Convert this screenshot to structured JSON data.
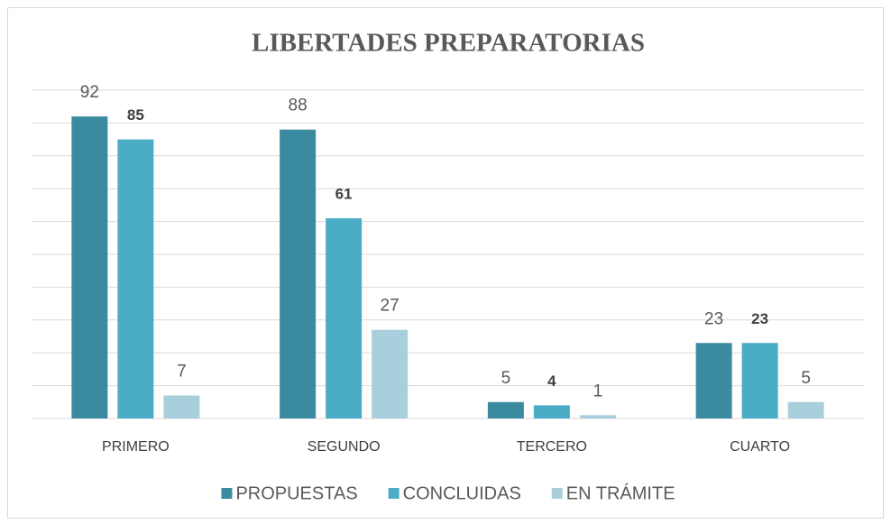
{
  "chart_data": {
    "type": "bar",
    "title": "LIBERTADES PREPARATORIAS",
    "categories": [
      "PRIMERO",
      "SEGUNDO",
      "TERCERO",
      "CUARTO"
    ],
    "series": [
      {
        "name": "PROPUESTAS",
        "color": "#3a8ba0",
        "values": [
          92,
          88,
          5,
          23
        ]
      },
      {
        "name": "CONCLUIDAS",
        "color": "#4bacc6",
        "values": [
          85,
          61,
          4,
          23
        ]
      },
      {
        "name": "EN TRÁMITE",
        "color": "#a9cfdd",
        "values": [
          7,
          27,
          1,
          5
        ]
      }
    ],
    "ylim": [
      0,
      100
    ],
    "yticks": [
      0,
      10,
      20,
      30,
      40,
      50,
      60,
      70,
      80,
      90,
      100
    ],
    "grid": true,
    "legend": "bottom"
  }
}
